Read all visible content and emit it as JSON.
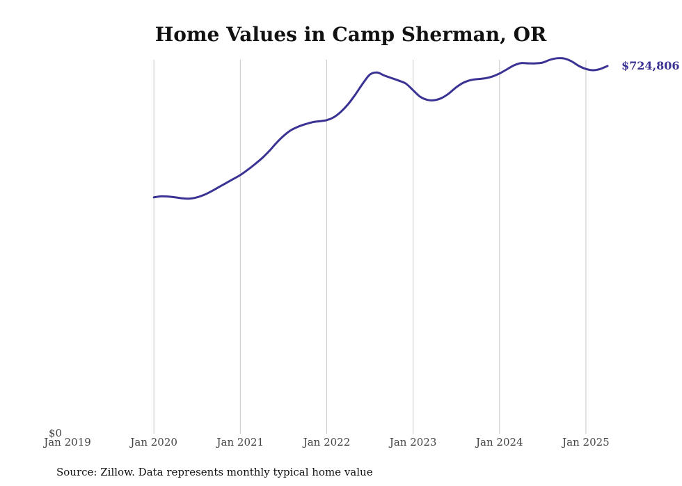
{
  "chart_data": {
    "type": "line",
    "title": "Home Values in Camp Sherman, OR",
    "source": "Source: Zillow. Data represents monthly typical home value",
    "y_tick_label": "$0",
    "end_label": "$724,806",
    "line_color": "#3a3394",
    "grid": "vertical",
    "x_tick_labels": [
      "Jan 2019",
      "Jan 2020",
      "Jan 2021",
      "Jan 2022",
      "Jan 2023",
      "Jan 2024",
      "Jan 2025"
    ],
    "x_ticks": [
      "2019-01",
      "2020-01",
      "2021-01",
      "2022-01",
      "2023-01",
      "2024-01",
      "2025-01"
    ],
    "xlim": [
      "2019-01",
      "2025-04"
    ],
    "ylim": [
      0,
      737000
    ],
    "series": [
      {
        "x": [
          "2020-01",
          "2020-02",
          "2020-03",
          "2020-04",
          "2020-05",
          "2020-06",
          "2020-07",
          "2020-08",
          "2020-09",
          "2020-10",
          "2020-11",
          "2020-12",
          "2021-01",
          "2021-02",
          "2021-03",
          "2021-04",
          "2021-05",
          "2021-06",
          "2021-07",
          "2021-08",
          "2021-09",
          "2021-10",
          "2021-11",
          "2021-12",
          "2022-01",
          "2022-02",
          "2022-03",
          "2022-04",
          "2022-05",
          "2022-06",
          "2022-07",
          "2022-08",
          "2022-09",
          "2022-10",
          "2022-11",
          "2022-12",
          "2023-01",
          "2023-02",
          "2023-03",
          "2023-04",
          "2023-05",
          "2023-06",
          "2023-07",
          "2023-08",
          "2023-09",
          "2023-10",
          "2023-11",
          "2023-12",
          "2024-01",
          "2024-02",
          "2024-03",
          "2024-04",
          "2024-05",
          "2024-06",
          "2024-07",
          "2024-08",
          "2024-09",
          "2024-10",
          "2024-11",
          "2024-12",
          "2025-01",
          "2025-02",
          "2025-03",
          "2025-04"
        ],
        "values": [
          466000,
          468000,
          467500,
          466000,
          464000,
          463500,
          466000,
          471000,
          478000,
          486000,
          494000,
          502000,
          510000,
          520000,
          531000,
          543000,
          557000,
          573000,
          587000,
          598000,
          605000,
          610000,
          614000,
          616000,
          618000,
          624000,
          635000,
          650000,
          669000,
          690000,
          708000,
          712000,
          706000,
          701000,
          696000,
          690000,
          677000,
          664000,
          658000,
          657500,
          662000,
          671000,
          683000,
          692000,
          697000,
          699000,
          700500,
          704000,
          710000,
          718000,
          726000,
          730500,
          730000,
          730000,
          731500,
          737000,
          740000,
          739500,
          734000,
          725000,
          719000,
          716500,
          719000,
          724806
        ]
      }
    ]
  }
}
